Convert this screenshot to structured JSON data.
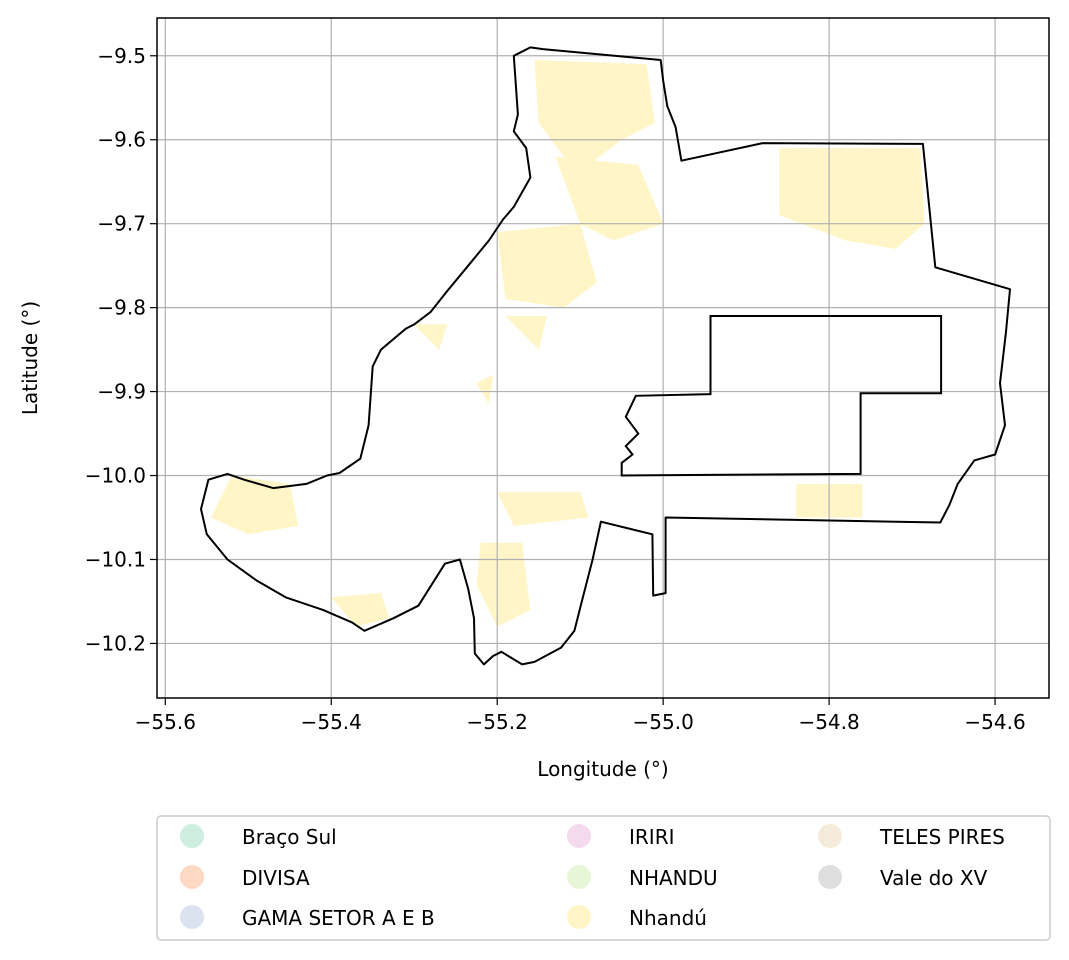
{
  "axes": {
    "xlabel": "Longitude (°)",
    "ylabel": "Latitude (°)",
    "xlim": [
      -55.61,
      -54.535
    ],
    "ylim": [
      -10.265,
      -9.455
    ],
    "xticks": [
      {
        "value": -55.6,
        "label": "−55.6"
      },
      {
        "value": -55.4,
        "label": "−55.4"
      },
      {
        "value": -55.2,
        "label": "−55.2"
      },
      {
        "value": -55.0,
        "label": "−55.0"
      },
      {
        "value": -54.8,
        "label": "−54.8"
      },
      {
        "value": -54.6,
        "label": "−54.6"
      }
    ],
    "yticks": [
      {
        "value": -9.5,
        "label": "−9.5"
      },
      {
        "value": -9.6,
        "label": "−9.6"
      },
      {
        "value": -9.7,
        "label": "−9.7"
      },
      {
        "value": -9.8,
        "label": "−9.8"
      },
      {
        "value": -9.9,
        "label": "−9.9"
      },
      {
        "value": -10.0,
        "label": "−10.0"
      },
      {
        "value": -10.1,
        "label": "−10.1"
      },
      {
        "value": -10.2,
        "label": "−10.2"
      }
    ],
    "grid": true
  },
  "legend": {
    "placement": "below plot, 3 columns",
    "entries": [
      {
        "label": "Braço Sul",
        "color": "#cdeee0"
      },
      {
        "label": "DIVISA",
        "color": "#fdd9c3"
      },
      {
        "label": "GAMA SETOR A E B",
        "color": "#dbe3f1"
      },
      {
        "label": "IRIRI",
        "color": "#f5d9ec"
      },
      {
        "label": "NHANDU",
        "color": "#e7f6d6"
      },
      {
        "label": "Nhandú",
        "color": "#fff5c7"
      },
      {
        "label": "TELES PIRES",
        "color": "#f4ebda"
      },
      {
        "label": "Vale do XV",
        "color": "#dedede"
      }
    ]
  },
  "map": {
    "boundary_color": "#000000",
    "fill_color": "#fff5c7",
    "boundary": [
      [
        -55.145,
        -9.492
      ],
      [
        -55.003,
        -9.505
      ],
      [
        -55.0,
        -9.53
      ],
      [
        -54.995,
        -9.56
      ],
      [
        -54.985,
        -9.585
      ],
      [
        -54.978,
        -9.625
      ],
      [
        -54.88,
        -9.604
      ],
      [
        -54.687,
        -9.605
      ],
      [
        -54.672,
        -9.752
      ],
      [
        -54.582,
        -9.778
      ],
      [
        -54.587,
        -9.83
      ],
      [
        -54.594,
        -9.89
      ],
      [
        -54.588,
        -9.94
      ],
      [
        -54.6,
        -9.975
      ],
      [
        -54.625,
        -9.982
      ],
      [
        -54.645,
        -10.01
      ],
      [
        -54.655,
        -10.035
      ],
      [
        -54.666,
        -10.056
      ],
      [
        -54.997,
        -10.05
      ],
      [
        -54.997,
        -10.14
      ],
      [
        -55.012,
        -10.143
      ],
      [
        -55.013,
        -10.07
      ],
      [
        -55.075,
        -10.055
      ],
      [
        -55.085,
        -10.1
      ],
      [
        -55.098,
        -10.15
      ],
      [
        -55.107,
        -10.185
      ],
      [
        -55.123,
        -10.205
      ],
      [
        -55.155,
        -10.222
      ],
      [
        -55.17,
        -10.225
      ],
      [
        -55.195,
        -10.21
      ],
      [
        -55.205,
        -10.215
      ],
      [
        -55.216,
        -10.225
      ],
      [
        -55.227,
        -10.212
      ],
      [
        -55.228,
        -10.17
      ],
      [
        -55.235,
        -10.135
      ],
      [
        -55.245,
        -10.1
      ],
      [
        -55.263,
        -10.105
      ],
      [
        -55.295,
        -10.155
      ],
      [
        -55.325,
        -10.17
      ],
      [
        -55.36,
        -10.185
      ],
      [
        -55.375,
        -10.175
      ],
      [
        -55.41,
        -10.16
      ],
      [
        -55.455,
        -10.145
      ],
      [
        -55.49,
        -10.125
      ],
      [
        -55.525,
        -10.1
      ],
      [
        -55.55,
        -10.07
      ],
      [
        -55.557,
        -10.04
      ],
      [
        -55.548,
        -10.005
      ],
      [
        -55.525,
        -9.998
      ],
      [
        -55.505,
        -10.005
      ],
      [
        -55.47,
        -10.015
      ],
      [
        -55.43,
        -10.01
      ],
      [
        -55.405,
        -10.0
      ],
      [
        -55.39,
        -9.997
      ],
      [
        -55.365,
        -9.98
      ],
      [
        -55.355,
        -9.94
      ],
      [
        -55.35,
        -9.87
      ],
      [
        -55.34,
        -9.85
      ],
      [
        -55.31,
        -9.825
      ],
      [
        -55.3,
        -9.82
      ],
      [
        -55.28,
        -9.805
      ],
      [
        -55.26,
        -9.78
      ],
      [
        -55.235,
        -9.75
      ],
      [
        -55.21,
        -9.72
      ],
      [
        -55.193,
        -9.695
      ],
      [
        -55.18,
        -9.68
      ],
      [
        -55.16,
        -9.645
      ],
      [
        -55.165,
        -9.61
      ],
      [
        -55.18,
        -9.59
      ],
      [
        -55.175,
        -9.57
      ],
      [
        -55.18,
        -9.5
      ],
      [
        -55.16,
        -9.49
      ],
      [
        -55.145,
        -9.492
      ]
    ],
    "inner_blocks": [
      [
        [
          -54.943,
          -9.81
        ],
        [
          -54.665,
          -9.81
        ],
        [
          -54.665,
          -9.902
        ],
        [
          -54.762,
          -9.902
        ],
        [
          -54.762,
          -9.998
        ],
        [
          -55.05,
          -10.0
        ],
        [
          -55.05,
          -9.985
        ],
        [
          -55.037,
          -9.975
        ],
        [
          -55.045,
          -9.965
        ],
        [
          -55.03,
          -9.95
        ],
        [
          -55.045,
          -9.93
        ],
        [
          -55.033,
          -9.905
        ],
        [
          -54.943,
          -9.903
        ],
        [
          -54.943,
          -9.81
        ]
      ]
    ],
    "fill_patches": [
      [
        [
          -55.155,
          -9.505
        ],
        [
          -55.02,
          -9.51
        ],
        [
          -55.01,
          -9.58
        ],
        [
          -55.05,
          -9.6
        ],
        [
          -55.09,
          -9.63
        ],
        [
          -55.12,
          -9.62
        ],
        [
          -55.15,
          -9.58
        ]
      ],
      [
        [
          -55.13,
          -9.62
        ],
        [
          -55.03,
          -9.63
        ],
        [
          -55.0,
          -9.7
        ],
        [
          -55.06,
          -9.72
        ],
        [
          -55.1,
          -9.7
        ]
      ],
      [
        [
          -55.2,
          -9.71
        ],
        [
          -55.1,
          -9.7
        ],
        [
          -55.08,
          -9.77
        ],
        [
          -55.12,
          -9.8
        ],
        [
          -55.19,
          -9.79
        ]
      ],
      [
        [
          -54.86,
          -9.61
        ],
        [
          -54.69,
          -9.61
        ],
        [
          -54.685,
          -9.7
        ],
        [
          -54.72,
          -9.73
        ],
        [
          -54.78,
          -9.72
        ],
        [
          -54.86,
          -9.69
        ]
      ],
      [
        [
          -55.52,
          -10.0
        ],
        [
          -55.45,
          -10.01
        ],
        [
          -55.44,
          -10.06
        ],
        [
          -55.5,
          -10.07
        ],
        [
          -55.545,
          -10.05
        ]
      ],
      [
        [
          -55.4,
          -10.145
        ],
        [
          -55.34,
          -10.14
        ],
        [
          -55.33,
          -10.17
        ],
        [
          -55.37,
          -10.18
        ]
      ],
      [
        [
          -55.22,
          -10.08
        ],
        [
          -55.17,
          -10.08
        ],
        [
          -55.16,
          -10.16
        ],
        [
          -55.2,
          -10.18
        ],
        [
          -55.225,
          -10.13
        ]
      ],
      [
        [
          -55.2,
          -10.02
        ],
        [
          -55.1,
          -10.02
        ],
        [
          -55.09,
          -10.05
        ],
        [
          -55.18,
          -10.06
        ]
      ],
      [
        [
          -54.84,
          -10.01
        ],
        [
          -54.76,
          -10.01
        ],
        [
          -54.76,
          -10.05
        ],
        [
          -54.84,
          -10.05
        ]
      ],
      [
        [
          -55.3,
          -9.82
        ],
        [
          -55.26,
          -9.82
        ],
        [
          -55.27,
          -9.85
        ]
      ],
      [
        [
          -55.19,
          -9.81
        ],
        [
          -55.14,
          -9.81
        ],
        [
          -55.15,
          -9.85
        ]
      ],
      [
        [
          -55.225,
          -9.89
        ],
        [
          -55.205,
          -9.88
        ],
        [
          -55.21,
          -9.915
        ]
      ]
    ]
  }
}
